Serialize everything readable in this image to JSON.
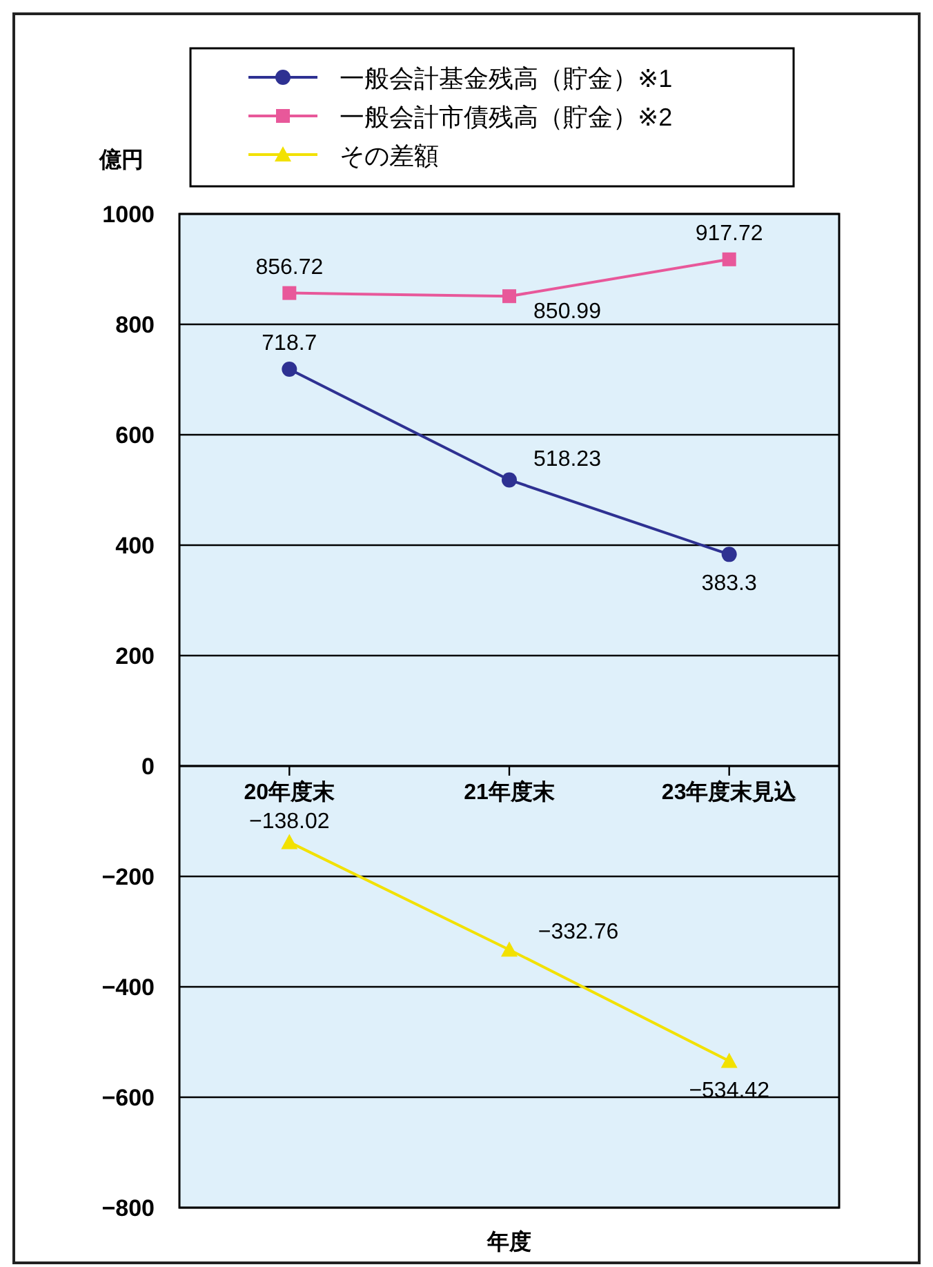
{
  "chart_data": {
    "type": "line",
    "categories": [
      "20年度末",
      "21年度末",
      "23年度末見込"
    ],
    "ylabel": "億円",
    "xlabel": "年度",
    "ylim": [
      -800,
      1000
    ],
    "yticks": [
      {
        "value": -800,
        "label": "−800"
      },
      {
        "value": -600,
        "label": "−600"
      },
      {
        "value": -400,
        "label": "−400"
      },
      {
        "value": -200,
        "label": "−200"
      },
      0,
      200,
      400,
      600,
      800,
      1000
    ],
    "grid": "y",
    "legend": "top",
    "series": [
      {
        "name": "一般会計基金残高（貯金）※1",
        "color": "#2e3192",
        "marker": "circle",
        "values": [
          718.7,
          518.23,
          383.3
        ],
        "value_labels": [
          "718.7",
          "518.23",
          "383.3"
        ]
      },
      {
        "name": "一般会計市債残高（貯金）※2",
        "color": "#e8589a",
        "marker": "square",
        "values": [
          856.72,
          850.99,
          917.72
        ],
        "value_labels": [
          "856.72",
          "850.99",
          "917.72"
        ]
      },
      {
        "name": "その差額",
        "color": "#f2e100",
        "marker": "triangle",
        "values": [
          -138.02,
          -332.76,
          -534.42
        ],
        "value_labels": [
          "−138.02",
          "−332.76",
          "−534.42"
        ]
      }
    ]
  }
}
